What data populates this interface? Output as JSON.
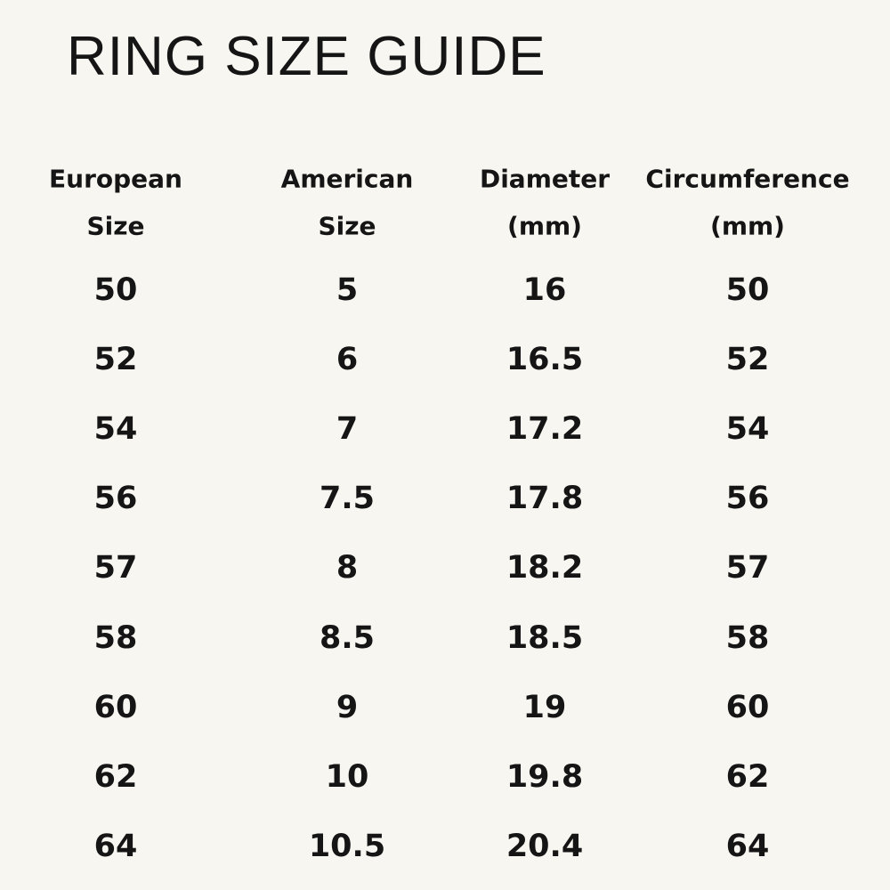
{
  "header": {
    "title": "RING SIZE GUIDE"
  },
  "table": {
    "columns": [
      [
        "European",
        "Size"
      ],
      [
        "American",
        "Size"
      ],
      [
        "Diameter",
        "(mm)"
      ],
      [
        "Circumference",
        "(mm)"
      ]
    ],
    "rows": [
      [
        50,
        5,
        16,
        50
      ],
      [
        52,
        6,
        16.5,
        52
      ],
      [
        54,
        7,
        17.2,
        54
      ],
      [
        56,
        7.5,
        17.8,
        56
      ],
      [
        57,
        8,
        18.2,
        57
      ],
      [
        58,
        8.5,
        18.5,
        58
      ],
      [
        60,
        9,
        19,
        60
      ],
      [
        62,
        10,
        19.8,
        62
      ],
      [
        64,
        10.5,
        20.4,
        64
      ]
    ]
  }
}
